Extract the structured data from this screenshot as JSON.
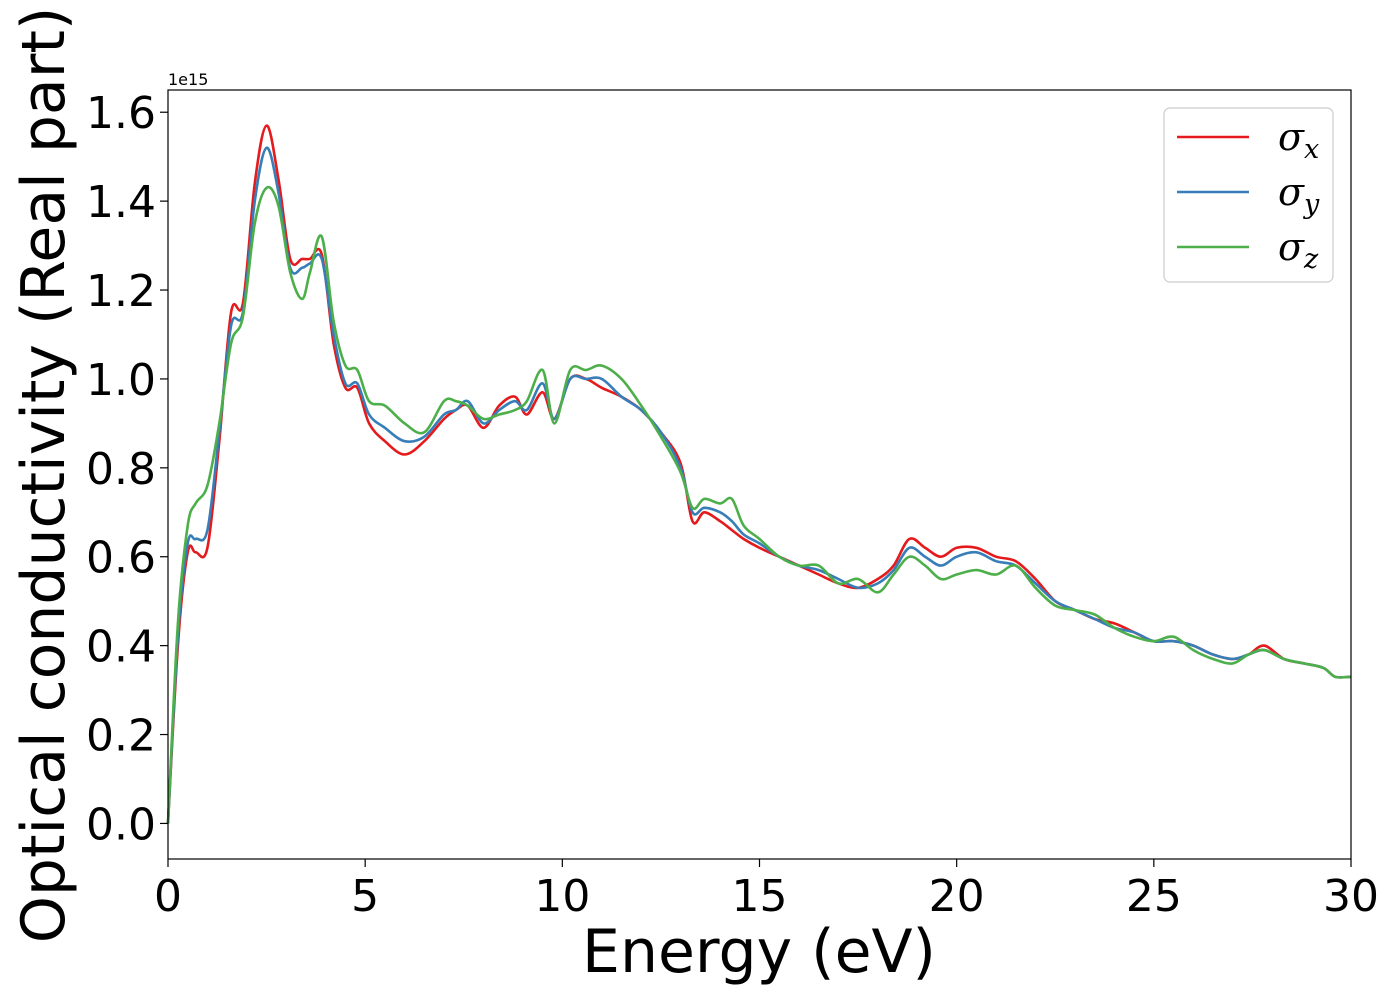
{
  "chart_data": {
    "type": "line",
    "xlabel": "Energy (eV)",
    "ylabel": "Optical conductivity (Real part)",
    "y_offset_label": "1e15",
    "xlim": [
      0,
      30
    ],
    "ylim": [
      -0.08,
      1.65
    ],
    "x_ticks": [
      0,
      5,
      10,
      15,
      20,
      25,
      30
    ],
    "x_tick_labels": [
      "0",
      "5",
      "10",
      "15",
      "20",
      "25",
      "30"
    ],
    "y_ticks": [
      0.0,
      0.2,
      0.4,
      0.6,
      0.8,
      1.0,
      1.2,
      1.4,
      1.6
    ],
    "y_tick_labels": [
      "0.0",
      "0.2",
      "0.4",
      "0.6",
      "0.8",
      "1.0",
      "1.2",
      "1.4",
      "1.6"
    ],
    "grid": false,
    "legend_position": "top-right",
    "x": [
      0,
      0.25,
      0.5,
      0.7,
      1.0,
      1.3,
      1.6,
      1.9,
      2.2,
      2.5,
      2.8,
      3.1,
      3.4,
      3.6,
      3.9,
      4.2,
      4.5,
      4.8,
      5.1,
      5.5,
      6.0,
      6.5,
      7.0,
      7.3,
      7.6,
      8.0,
      8.4,
      8.8,
      9.1,
      9.5,
      9.8,
      10.2,
      10.6,
      11.0,
      11.5,
      12.0,
      12.5,
      13.0,
      13.3,
      13.6,
      14.0,
      14.3,
      14.6,
      15.0,
      15.5,
      16.0,
      16.5,
      17.0,
      17.5,
      18.0,
      18.4,
      18.8,
      19.2,
      19.6,
      20.0,
      20.5,
      21.0,
      21.5,
      22.0,
      22.5,
      23.0,
      23.5,
      24.0,
      24.5,
      25.0,
      25.5,
      26.0,
      26.5,
      27.0,
      27.4,
      27.8,
      28.3,
      28.8,
      29.3,
      29.6,
      30.0
    ],
    "series": [
      {
        "name": "σ",
        "subscript": "x",
        "color": "#e41a1c",
        "values": [
          0.0,
          0.4,
          0.61,
          0.61,
          0.62,
          0.86,
          1.15,
          1.17,
          1.44,
          1.57,
          1.45,
          1.27,
          1.27,
          1.27,
          1.28,
          1.08,
          0.98,
          0.98,
          0.9,
          0.86,
          0.83,
          0.86,
          0.91,
          0.93,
          0.94,
          0.89,
          0.94,
          0.96,
          0.92,
          0.97,
          0.91,
          1.0,
          1.0,
          0.98,
          0.96,
          0.93,
          0.88,
          0.81,
          0.68,
          0.7,
          0.68,
          0.66,
          0.64,
          0.62,
          0.6,
          0.58,
          0.56,
          0.54,
          0.53,
          0.55,
          0.58,
          0.64,
          0.62,
          0.6,
          0.62,
          0.62,
          0.6,
          0.59,
          0.55,
          0.5,
          0.48,
          0.46,
          0.45,
          0.43,
          0.41,
          0.41,
          0.4,
          0.38,
          0.37,
          0.38,
          0.4,
          0.37,
          0.36,
          0.35,
          0.33,
          0.33
        ]
      },
      {
        "name": "σ",
        "subscript": "y",
        "color": "#377eb8",
        "values": [
          0.0,
          0.42,
          0.63,
          0.64,
          0.66,
          0.88,
          1.12,
          1.15,
          1.4,
          1.52,
          1.42,
          1.25,
          1.25,
          1.26,
          1.27,
          1.1,
          0.99,
          0.99,
          0.92,
          0.89,
          0.86,
          0.87,
          0.92,
          0.93,
          0.95,
          0.9,
          0.93,
          0.95,
          0.93,
          0.99,
          0.91,
          1.0,
          1.0,
          1.0,
          0.96,
          0.93,
          0.88,
          0.8,
          0.7,
          0.71,
          0.7,
          0.68,
          0.65,
          0.63,
          0.6,
          0.58,
          0.57,
          0.55,
          0.53,
          0.54,
          0.57,
          0.62,
          0.6,
          0.58,
          0.6,
          0.61,
          0.59,
          0.58,
          0.54,
          0.5,
          0.48,
          0.46,
          0.44,
          0.43,
          0.41,
          0.41,
          0.4,
          0.38,
          0.37,
          0.38,
          0.39,
          0.37,
          0.36,
          0.35,
          0.33,
          0.33
        ]
      },
      {
        "name": "σ",
        "subscript": "z",
        "color": "#4daf4a",
        "values": [
          0.0,
          0.45,
          0.67,
          0.72,
          0.76,
          0.9,
          1.08,
          1.14,
          1.35,
          1.43,
          1.39,
          1.24,
          1.18,
          1.24,
          1.32,
          1.13,
          1.03,
          1.02,
          0.95,
          0.94,
          0.9,
          0.88,
          0.95,
          0.95,
          0.94,
          0.91,
          0.92,
          0.93,
          0.95,
          1.02,
          0.9,
          1.02,
          1.02,
          1.03,
          1.0,
          0.94,
          0.87,
          0.79,
          0.71,
          0.73,
          0.72,
          0.73,
          0.67,
          0.64,
          0.6,
          0.58,
          0.58,
          0.54,
          0.55,
          0.52,
          0.56,
          0.6,
          0.58,
          0.55,
          0.56,
          0.57,
          0.56,
          0.58,
          0.53,
          0.49,
          0.48,
          0.47,
          0.44,
          0.42,
          0.41,
          0.42,
          0.39,
          0.37,
          0.36,
          0.38,
          0.39,
          0.37,
          0.36,
          0.35,
          0.33,
          0.33
        ]
      }
    ]
  }
}
